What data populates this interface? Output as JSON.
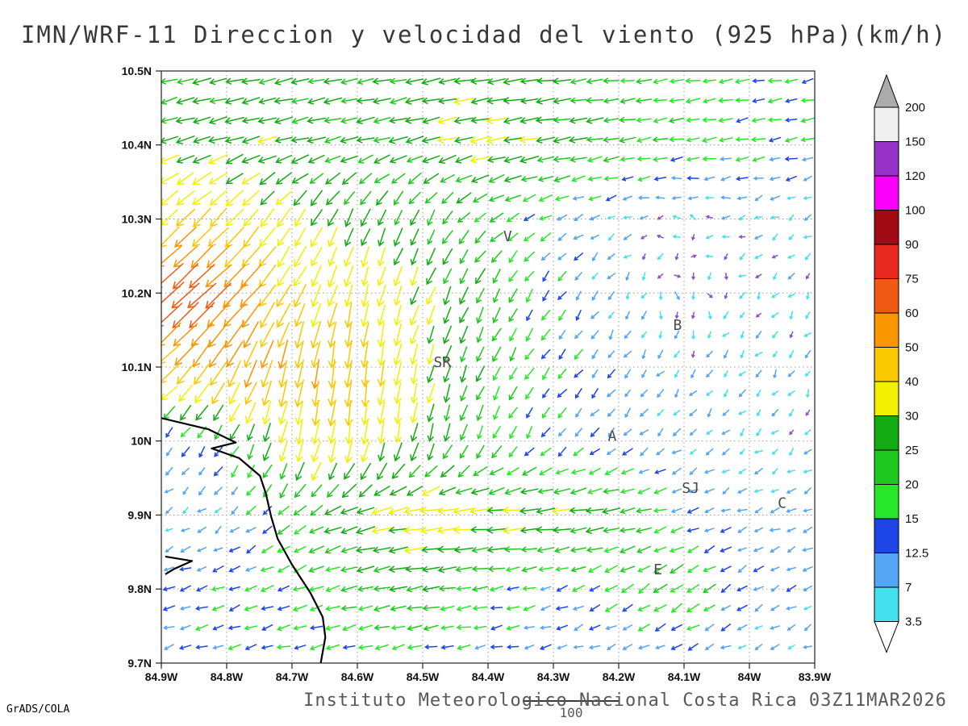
{
  "title": "IMN/WRF-11 Direccion y velocidad del viento (925 hPa)(km/h)",
  "footer": {
    "caption": "Instituto Meteorologico Nacional Costa Rica 03Z11MAR2026",
    "credit": "GrADS/COLA",
    "reference_vector_label": "100"
  },
  "chart_data": {
    "type": "vector_field",
    "title": "IMN/WRF-11 Direccion y velocidad del viento (925 hPa)(km/h)",
    "units": "km/h",
    "pressure_level": "925 hPa",
    "valid_time": "03Z11MAR2026",
    "grid_on": true,
    "grid_step_deg": 0.1,
    "x_axis": {
      "ticks": [
        "84.9W",
        "84.8W",
        "84.7W",
        "84.6W",
        "84.5W",
        "84.4W",
        "84.3W",
        "84.2W",
        "84.1W",
        "84W",
        "83.9W"
      ],
      "range_deg": [
        -84.9,
        -83.9
      ]
    },
    "y_axis": {
      "ticks": [
        "10.5N",
        "10.4N",
        "10.3N",
        "10.2N",
        "10.1N",
        "10N",
        "9.9N",
        "9.8N",
        "9.7N"
      ],
      "range_deg": [
        9.7,
        10.5
      ]
    },
    "colorbar": {
      "levels": [
        3.5,
        7,
        12.5,
        15,
        20,
        25,
        30,
        40,
        50,
        60,
        75,
        90,
        100,
        120,
        150,
        200
      ],
      "band_colors": [
        "#45E0EE",
        "#55A5F5",
        "#1E46E6",
        "#28E628",
        "#1EC81E",
        "#14AA14",
        "#F0F000",
        "#FAC800",
        "#FA9600",
        "#F05A14",
        "#E6281E",
        "#A00A14",
        "#FA00FA",
        "#9632C8",
        "#EFEFEF"
      ],
      "above_color": "#ABABAB",
      "below_color": "#FFFFFF",
      "calm_arrow_color": "#8C50D2"
    },
    "wind_grid": {
      "lons": [
        -84.9,
        -84.8,
        -84.7,
        -84.6,
        -84.5,
        -84.4,
        -84.3,
        -84.2,
        -84.1,
        -84.0,
        -83.9
      ],
      "lats": [
        10.5,
        10.4,
        10.3,
        10.2,
        10.1,
        10.0,
        9.9,
        9.8,
        9.7
      ],
      "u_kmh": [
        [
          -24,
          -26,
          -25,
          -24,
          -26,
          -28,
          -25,
          -20,
          -18,
          -16,
          -15
        ],
        [
          -26,
          -28,
          -26,
          -25,
          -27,
          -30,
          -28,
          -22,
          -18,
          -16,
          -14
        ],
        [
          -30,
          -28,
          -18,
          -12,
          -10,
          -18,
          -12,
          -6,
          -4,
          -5,
          -4
        ],
        [
          -55,
          -45,
          -20,
          -8,
          -12,
          -10,
          -8,
          -4,
          3,
          -3,
          -3
        ],
        [
          -35,
          -25,
          -10,
          -5,
          -8,
          -10,
          -10,
          -6,
          -4,
          -4,
          -3
        ],
        [
          -6,
          -10,
          -8,
          -5,
          -6,
          -8,
          -8,
          -8,
          -6,
          -4,
          -3
        ],
        [
          -5,
          -6,
          -15,
          -28,
          -35,
          -32,
          -30,
          -25,
          -12,
          -8,
          -10
        ],
        [
          -12,
          -14,
          -16,
          -22,
          -25,
          -18,
          -12,
          -15,
          -18,
          -10,
          -8
        ],
        [
          -12,
          -13,
          -14,
          -15,
          -14,
          -12,
          -10,
          -8,
          -10,
          -6,
          -6
        ]
      ],
      "v_kmh": [
        [
          -6,
          -5,
          -6,
          -4,
          -5,
          -4,
          -3,
          -2,
          -3,
          -2,
          -3
        ],
        [
          -8,
          -8,
          -6,
          -6,
          -7,
          -6,
          -5,
          -4,
          -3,
          -3,
          -3
        ],
        [
          -28,
          -30,
          -28,
          -26,
          -22,
          -12,
          -6,
          -3,
          2,
          -2,
          -3
        ],
        [
          -50,
          -42,
          -35,
          -35,
          -28,
          -22,
          -12,
          -6,
          -4,
          -3,
          -4
        ],
        [
          -30,
          -45,
          -50,
          -48,
          -30,
          -20,
          -12,
          -8,
          -6,
          -5,
          -5
        ],
        [
          -8,
          -15,
          -35,
          -38,
          -28,
          -18,
          -10,
          -8,
          -5,
          -4,
          -3
        ],
        [
          -3,
          -5,
          -12,
          -8,
          -4,
          -2,
          -3,
          -4,
          -4,
          -3,
          -4
        ],
        [
          -4,
          -5,
          -6,
          -5,
          -4,
          -3,
          -4,
          -10,
          -12,
          -6,
          -4
        ],
        [
          -3,
          -4,
          -3,
          -4,
          -3,
          -2,
          -3,
          -2,
          -4,
          -3,
          -3
        ]
      ]
    },
    "stations": [
      {
        "label": "V",
        "lon": -84.37,
        "lat": 10.27
      },
      {
        "label": "B",
        "lon": -84.11,
        "lat": 10.15
      },
      {
        "label": "SR",
        "lon": -84.47,
        "lat": 10.1
      },
      {
        "label": "A",
        "lon": -84.21,
        "lat": 10.0
      },
      {
        "label": "SJ",
        "lon": -84.09,
        "lat": 9.93
      },
      {
        "label": "C",
        "lon": -83.95,
        "lat": 9.91
      },
      {
        "label": "E",
        "lon": -84.14,
        "lat": 9.82
      }
    ],
    "coastline": [
      [
        -84.9,
        10.031
      ],
      [
        -84.828,
        10.016
      ],
      [
        -84.786,
        9.998
      ],
      [
        -84.823,
        9.99
      ],
      [
        -84.781,
        9.977
      ],
      [
        -84.749,
        9.953
      ],
      [
        -84.74,
        9.929
      ],
      [
        -84.732,
        9.898
      ],
      [
        -84.722,
        9.868
      ],
      [
        -84.7,
        9.833
      ],
      [
        -84.672,
        9.795
      ],
      [
        -84.653,
        9.762
      ],
      [
        -84.649,
        9.735
      ],
      [
        -84.656,
        9.7
      ]
    ],
    "islet": [
      [
        -84.894,
        9.844
      ],
      [
        -84.853,
        9.838
      ],
      [
        -84.881,
        9.827
      ],
      [
        -84.894,
        9.82
      ]
    ],
    "reference_vector_kmh": 100
  }
}
